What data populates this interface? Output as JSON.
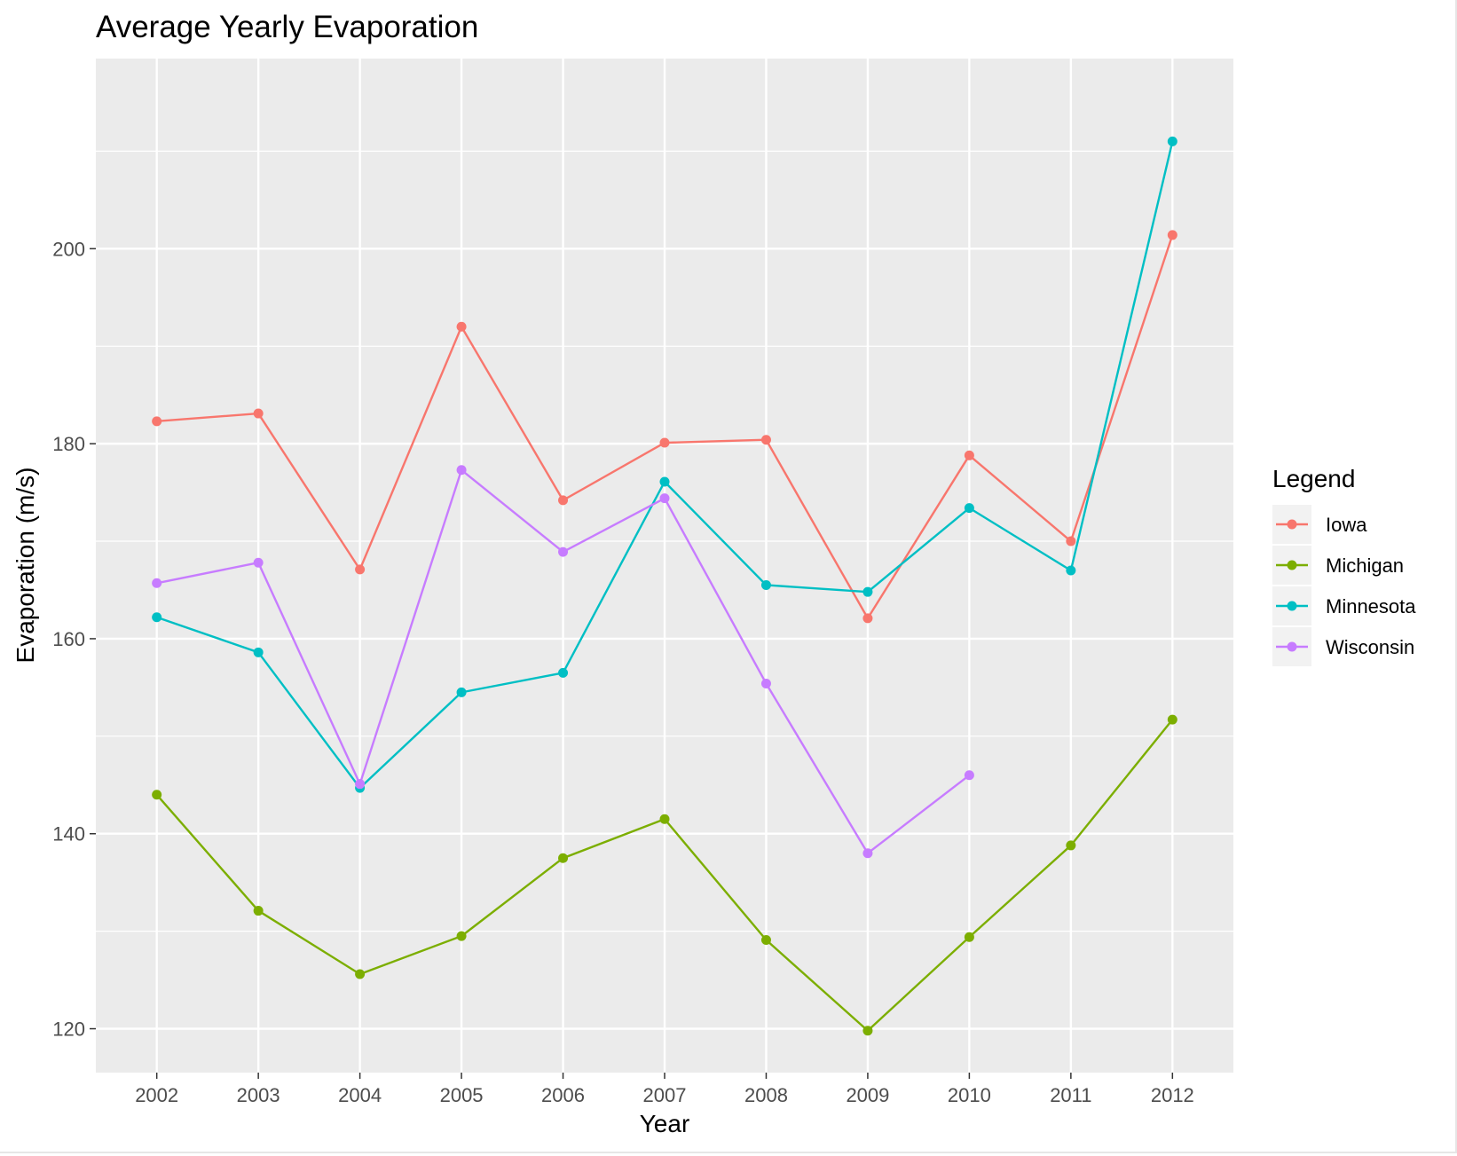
{
  "chart_data": {
    "type": "line",
    "title": "Average Yearly Evaporation",
    "xlabel": "Year",
    "ylabel": "Evaporation (m/s)",
    "x": [
      2002,
      2003,
      2004,
      2005,
      2006,
      2007,
      2008,
      2009,
      2010,
      2011,
      2012
    ],
    "xlim": [
      2001.4,
      2012.6
    ],
    "ylim": [
      115.5,
      219.5
    ],
    "yticks": [
      120,
      140,
      160,
      180,
      200
    ],
    "grid": true,
    "legend": {
      "title": "Legend",
      "position": "right"
    },
    "series": [
      {
        "name": "Iowa",
        "color": "#F8766D",
        "values": [
          182.3,
          183.1,
          167.1,
          192.0,
          174.2,
          180.1,
          180.4,
          162.1,
          178.8,
          170.0,
          201.4
        ]
      },
      {
        "name": "Michigan",
        "color": "#7CAE00",
        "values": [
          144.0,
          132.1,
          125.6,
          129.5,
          137.5,
          141.5,
          129.1,
          119.8,
          129.4,
          138.8,
          151.7
        ]
      },
      {
        "name": "Minnesota",
        "color": "#00BFC4",
        "values": [
          162.2,
          158.6,
          144.7,
          154.5,
          156.5,
          176.1,
          165.5,
          164.8,
          173.4,
          167.0,
          211.0
        ]
      },
      {
        "name": "Wisconsin",
        "color": "#C77CFF",
        "values": [
          165.7,
          167.8,
          145.1,
          177.3,
          168.9,
          174.4,
          155.4,
          138.0,
          146.0,
          null,
          null
        ]
      }
    ]
  }
}
